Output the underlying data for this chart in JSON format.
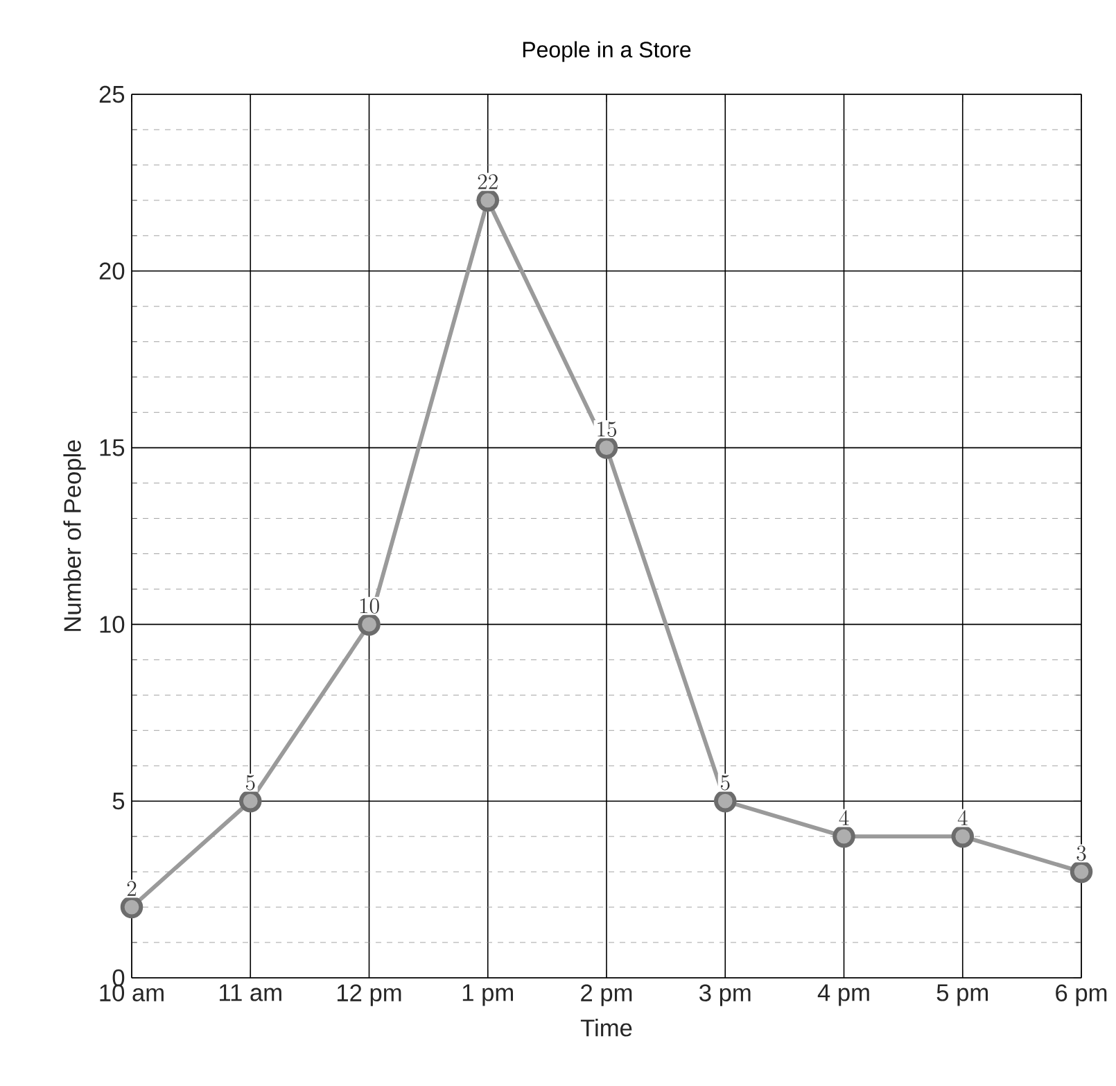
{
  "chart_data": {
    "type": "line",
    "title": "People in a Store",
    "xlabel": "Time",
    "ylabel": "Number of People",
    "categories": [
      "10 am",
      "11 am",
      "12 pm",
      "1 pm",
      "2 pm",
      "3 pm",
      "4 pm",
      "5 pm",
      "6 pm"
    ],
    "values": [
      2,
      5,
      10,
      22,
      15,
      5,
      4,
      4,
      3
    ],
    "color": "#9a9a9a",
    "ylim": [
      0,
      25
    ],
    "yticks": [
      0,
      5,
      10,
      15,
      20,
      25
    ],
    "grid": true,
    "marker": "circle",
    "line_style": "solid",
    "data_labels": true
  }
}
